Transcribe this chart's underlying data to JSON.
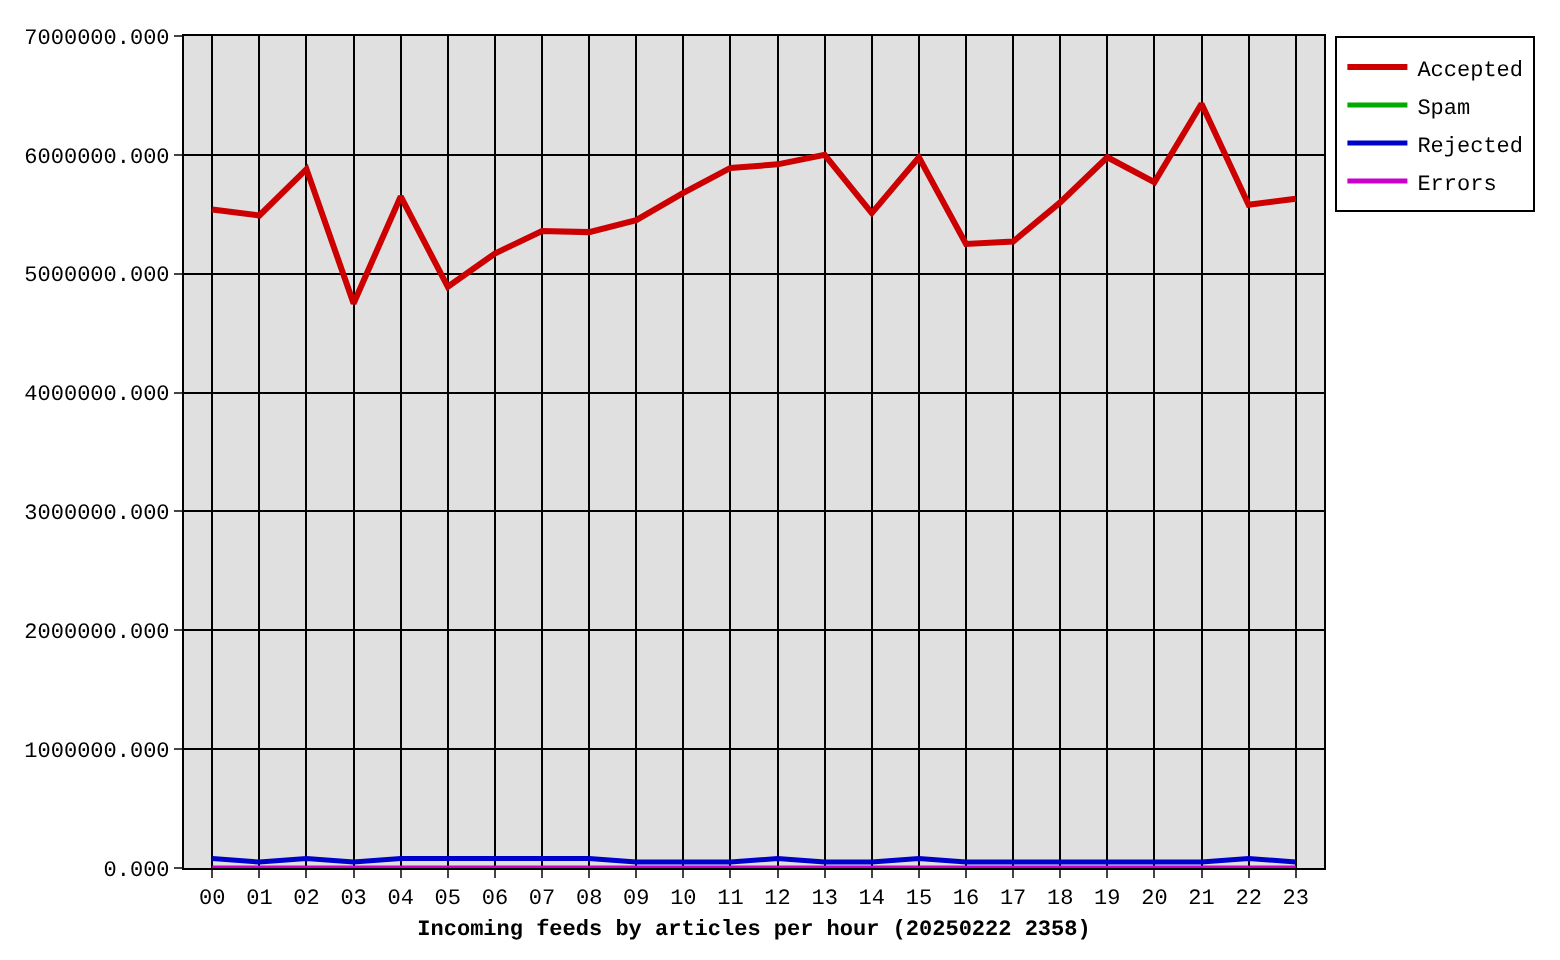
{
  "chart_data": {
    "type": "line",
    "xlabel": "Incoming feeds by articles per hour (20250222 2358)",
    "categories": [
      "00",
      "01",
      "02",
      "03",
      "04",
      "05",
      "06",
      "07",
      "08",
      "09",
      "10",
      "11",
      "12",
      "13",
      "14",
      "15",
      "16",
      "17",
      "18",
      "19",
      "20",
      "21",
      "22",
      "23"
    ],
    "series": [
      {
        "name": "Accepted",
        "color": "#cc0000",
        "values": [
          5540000,
          5490000,
          5880000,
          4750000,
          5650000,
          4890000,
          5170000,
          5360000,
          5350000,
          5450000,
          5680000,
          5890000,
          5920000,
          6000000,
          5510000,
          5980000,
          5250000,
          5270000,
          5600000,
          5980000,
          5770000,
          6430000,
          5580000,
          5630000
        ]
      },
      {
        "name": "Spam",
        "color": "#00aa00",
        "values": [
          null,
          null,
          null,
          null,
          null,
          null,
          null,
          null,
          null,
          null,
          null,
          null,
          null,
          null,
          null,
          null,
          null,
          null,
          null,
          null,
          null,
          null,
          null,
          null
        ]
      },
      {
        "name": "Rejected",
        "color": "#0000cc",
        "values": [
          80000,
          50000,
          80000,
          50000,
          80000,
          80000,
          80000,
          80000,
          80000,
          50000,
          50000,
          50000,
          80000,
          50000,
          50000,
          80000,
          50000,
          50000,
          50000,
          50000,
          50000,
          50000,
          80000,
          50000
        ]
      },
      {
        "name": "Errors",
        "color": "#cc00cc",
        "values": [
          0,
          0,
          0,
          0,
          0,
          0,
          0,
          0,
          0,
          0,
          0,
          0,
          0,
          0,
          0,
          0,
          0,
          0,
          0,
          0,
          0,
          0,
          0,
          0
        ]
      }
    ],
    "ylim": [
      0,
      7000000
    ],
    "yticks": [
      {
        "value": 0,
        "label": "0.000"
      },
      {
        "value": 1000000,
        "label": "1000000.000"
      },
      {
        "value": 2000000,
        "label": "2000000.000"
      },
      {
        "value": 3000000,
        "label": "3000000.000"
      },
      {
        "value": 4000000,
        "label": "4000000.000"
      },
      {
        "value": 5000000,
        "label": "5000000.000"
      },
      {
        "value": 6000000,
        "label": "6000000.000"
      },
      {
        "value": 7000000,
        "label": "7000000.000"
      }
    ],
    "grid": true,
    "legend": "top right",
    "marker": "none",
    "line_style": "solid"
  }
}
